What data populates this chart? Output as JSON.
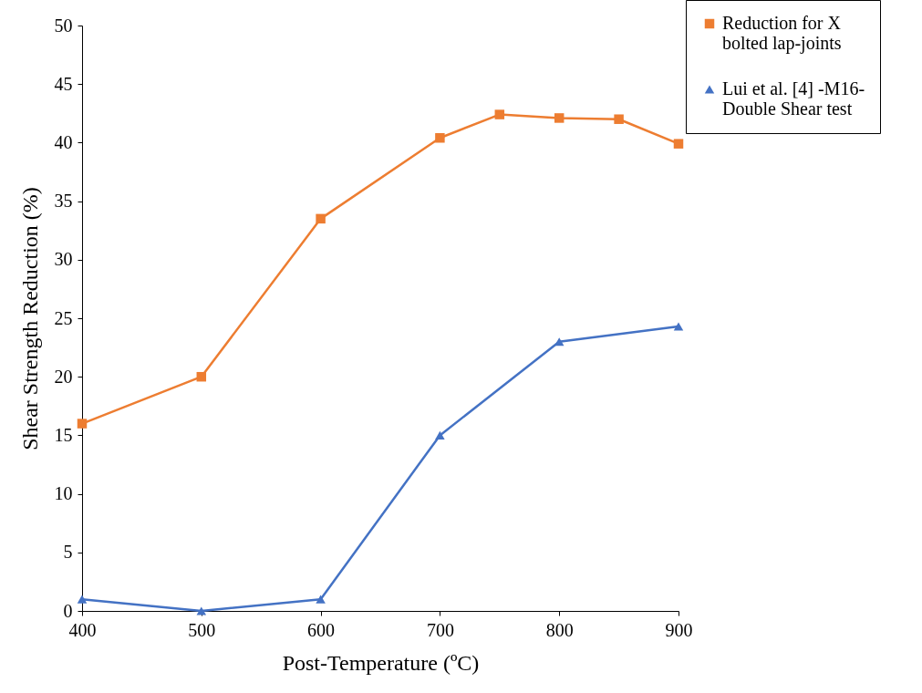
{
  "chart_data": {
    "type": "line",
    "xlabel": "Post-Temperature (ºC)",
    "ylabel": "Shear Strength Reduction (%)",
    "xlim": [
      400,
      900
    ],
    "xticks": [
      400,
      500,
      600,
      700,
      800,
      900
    ],
    "ylim": [
      0,
      50
    ],
    "yticks": [
      0,
      5,
      10,
      15,
      20,
      25,
      30,
      35,
      40,
      45,
      50
    ],
    "grid": false,
    "legend": "top right",
    "series": [
      {
        "name": "Reduction for X bolted lap-joints",
        "color": "#ed7d31",
        "marker": "square",
        "x": [
          400,
          500,
          600,
          700,
          750,
          800,
          850,
          900
        ],
        "values": [
          16.0,
          20.0,
          33.5,
          40.4,
          42.4,
          42.1,
          42.0,
          39.9
        ]
      },
      {
        "name": "Lui et al. [4] -M16- Double Shear test",
        "color": "#4472c4",
        "marker": "triangle",
        "x": [
          400,
          500,
          600,
          700,
          800,
          900
        ],
        "values": [
          1.0,
          0.0,
          1.0,
          15.0,
          23.0,
          24.3
        ]
      }
    ]
  }
}
